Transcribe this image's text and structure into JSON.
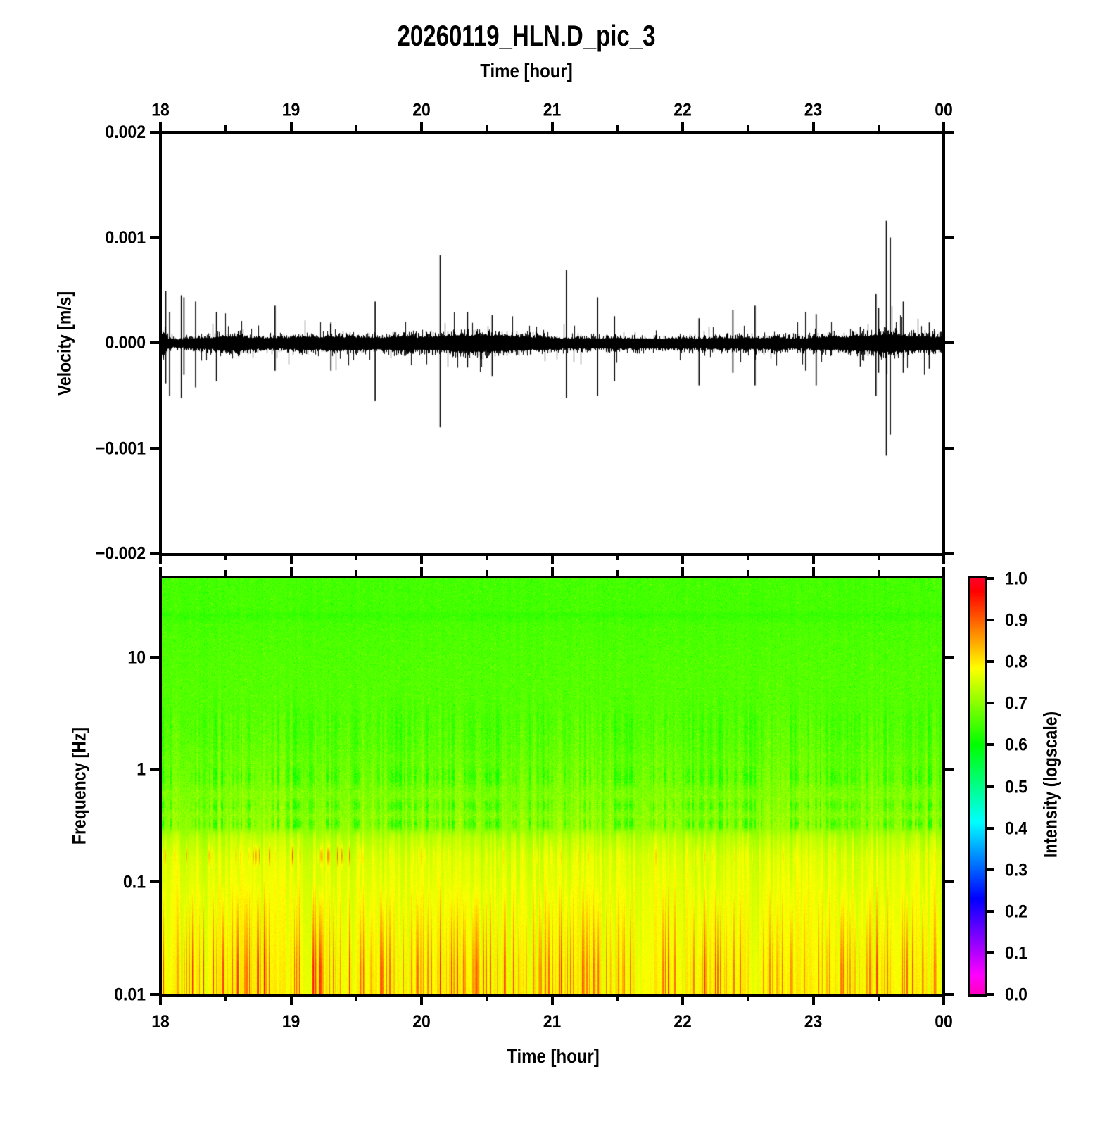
{
  "title": "20260119_HLN.D_pic_3",
  "top_axis": {
    "label": "Time [hour]",
    "tick_labels": [
      "18",
      "19",
      "20",
      "21",
      "22",
      "23",
      "00"
    ]
  },
  "bottom_axis": {
    "label": "Time [hour]",
    "tick_labels": [
      "18",
      "19",
      "20",
      "21",
      "22",
      "23",
      "00"
    ]
  },
  "waveform_panel": {
    "ylabel": "Velocity [m/s]",
    "y_tick_labels": [
      "0.002",
      "0.001",
      "0.000",
      "−0.001",
      "−0.002"
    ]
  },
  "spectrogram_panel": {
    "ylabel": "Frequency [Hz]",
    "y_tick_labels": [
      "10",
      "1",
      "0.1",
      "0.01"
    ]
  },
  "colorbar": {
    "label": "Intensity (logscale)",
    "tick_labels": [
      "1.0",
      "0.9",
      "0.8",
      "0.7",
      "0.6",
      "0.5",
      "0.4",
      "0.3",
      "0.2",
      "0.1",
      "0.0"
    ]
  },
  "chart_data": [
    {
      "type": "line",
      "name": "seismogram",
      "title": "20260119_HLN.D_pic_3",
      "xlabel": "Time [hour]",
      "ylabel": "Velocity [m/s]",
      "x_range_hours": [
        18,
        24
      ],
      "x_tick_labels": [
        "18",
        "19",
        "20",
        "21",
        "22",
        "23",
        "00"
      ],
      "ylim": [
        -0.002,
        0.002
      ],
      "y_ticks": [
        0.002,
        0.001,
        0.0,
        -0.001,
        -0.002
      ],
      "line_color": "#000000",
      "noise_band_halfwidth_ms": 5e-05,
      "spikes_hour_up_down": [
        [
          18.03,
          0.0005,
          -0.00038
        ],
        [
          18.06,
          0.0003,
          -0.0005
        ],
        [
          18.15,
          0.00046,
          -0.00052
        ],
        [
          18.17,
          0.00044,
          -0.0003
        ],
        [
          18.26,
          0.0004,
          -0.00042
        ],
        [
          18.42,
          0.0003,
          -0.00036
        ],
        [
          18.87,
          0.00036,
          -0.00026
        ],
        [
          19.3,
          0.0002,
          -0.00026
        ],
        [
          19.64,
          0.0004,
          -0.00055
        ],
        [
          20.14,
          0.00084,
          -0.0008
        ],
        [
          20.35,
          0.0003,
          -0.00023
        ],
        [
          20.54,
          0.00027,
          -0.00031
        ],
        [
          21.11,
          0.0007,
          -0.00052
        ],
        [
          21.35,
          0.00044,
          -0.0005
        ],
        [
          21.48,
          0.00026,
          -0.00036
        ],
        [
          22.13,
          0.00024,
          -0.0004
        ],
        [
          22.39,
          0.00032,
          -0.00028
        ],
        [
          22.56,
          0.00036,
          -0.0004
        ],
        [
          22.95,
          0.0003,
          -0.00026
        ],
        [
          23.03,
          0.00028,
          -0.0004
        ],
        [
          23.37,
          0.00016,
          -0.00022
        ],
        [
          23.49,
          0.00047,
          -0.0005
        ],
        [
          23.51,
          0.00034,
          -0.00028
        ],
        [
          23.57,
          0.00117,
          -0.00107
        ],
        [
          23.6,
          0.00101,
          -0.00087
        ],
        [
          23.7,
          0.0004,
          -0.00028
        ],
        [
          23.9,
          0.0002,
          -0.00024
        ]
      ]
    },
    {
      "type": "heatmap",
      "name": "spectrogram",
      "xlabel": "Time [hour]",
      "ylabel": "Frequency [Hz]",
      "x_range_hours": [
        18,
        24
      ],
      "y_scale": "log",
      "ylim_hz": [
        0.01,
        50
      ],
      "y_ticks_hz": [
        10,
        1,
        0.1,
        0.01
      ],
      "intensity_range": [
        0,
        1
      ],
      "colorbar_label": "Intensity (logscale)",
      "colorbar_ticks": [
        1.0,
        0.9,
        0.8,
        0.7,
        0.6,
        0.5,
        0.4,
        0.3,
        0.2,
        0.1,
        0.0
      ],
      "colormap": "gist_rainbow_reversed",
      "colormap_stops": [
        [
          0.0,
          "#ff00bf"
        ],
        [
          0.046,
          "#ff00ff"
        ],
        [
          0.23,
          "#0000ff"
        ],
        [
          0.414,
          "#00ffff"
        ],
        [
          0.6,
          "#00ff00"
        ],
        [
          0.785,
          "#ffff00"
        ],
        [
          0.97,
          "#ff0000"
        ],
        [
          1.0,
          "#ff0029"
        ]
      ],
      "intensity_vs_logfreq": [
        [
          1.7,
          0.652
        ],
        [
          1.42,
          0.652
        ],
        [
          1.38,
          0.64
        ],
        [
          1.3,
          0.655
        ],
        [
          1.0,
          0.66
        ],
        [
          0.48,
          0.667
        ],
        [
          0.18,
          0.678
        ],
        [
          -0.05,
          0.69
        ],
        [
          -0.35,
          0.705
        ],
        [
          -0.52,
          0.715
        ],
        [
          -0.62,
          0.74
        ],
        [
          -0.8,
          0.762
        ],
        [
          -1.0,
          0.772
        ],
        [
          -1.3,
          0.778
        ],
        [
          -1.7,
          0.785
        ],
        [
          -2.0,
          0.79
        ]
      ],
      "dark_stripe_bands_logf_center_sigma_amp": [
        [
          -0.07,
          0.1,
          0.7
        ],
        [
          -0.32,
          0.06,
          0.8
        ],
        [
          -0.48,
          0.055,
          1.0
        ],
        [
          0.3,
          0.3,
          0.35
        ]
      ],
      "hot_stripe_bands": {
        "mid_center_logf": -0.76,
        "mid_sigma": 0.085,
        "mid_fade_after_hour": 19.55,
        "low_band_below_hz": 0.1
      }
    }
  ]
}
